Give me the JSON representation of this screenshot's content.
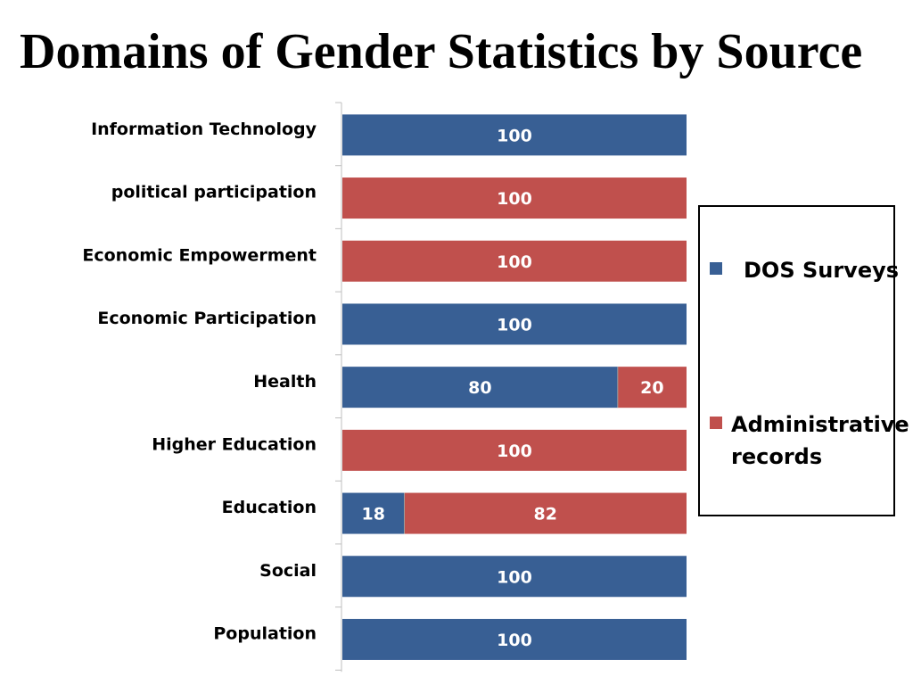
{
  "title": "Domains of Gender Statistics by Source",
  "colors": {
    "dos_surveys": "#385f94",
    "administrative_records": "#c0504d"
  },
  "chart_data": {
    "type": "bar",
    "orientation": "horizontal",
    "stacked": true,
    "title": "Domains of Gender Statistics by Source",
    "categories": [
      "Information Technology",
      "political participation",
      "Economic Empowerment",
      "Economic Participation",
      "Health",
      "Higher Education",
      "Education",
      "Social",
      "Population"
    ],
    "series": [
      {
        "name": "DOS Surveys",
        "values": [
          100,
          0,
          0,
          100,
          80,
          0,
          18,
          100,
          100
        ]
      },
      {
        "name": "Administrative records",
        "values": [
          0,
          100,
          100,
          0,
          20,
          100,
          82,
          0,
          0
        ]
      }
    ],
    "xlim": [
      0,
      100
    ],
    "grid": false,
    "legend_position": "right"
  },
  "legend": {
    "items": [
      "DOS Surveys",
      "Administrative records"
    ],
    "label_lines": [
      [
        "DOS Surveys"
      ],
      [
        "Administrative",
        "records"
      ]
    ]
  }
}
